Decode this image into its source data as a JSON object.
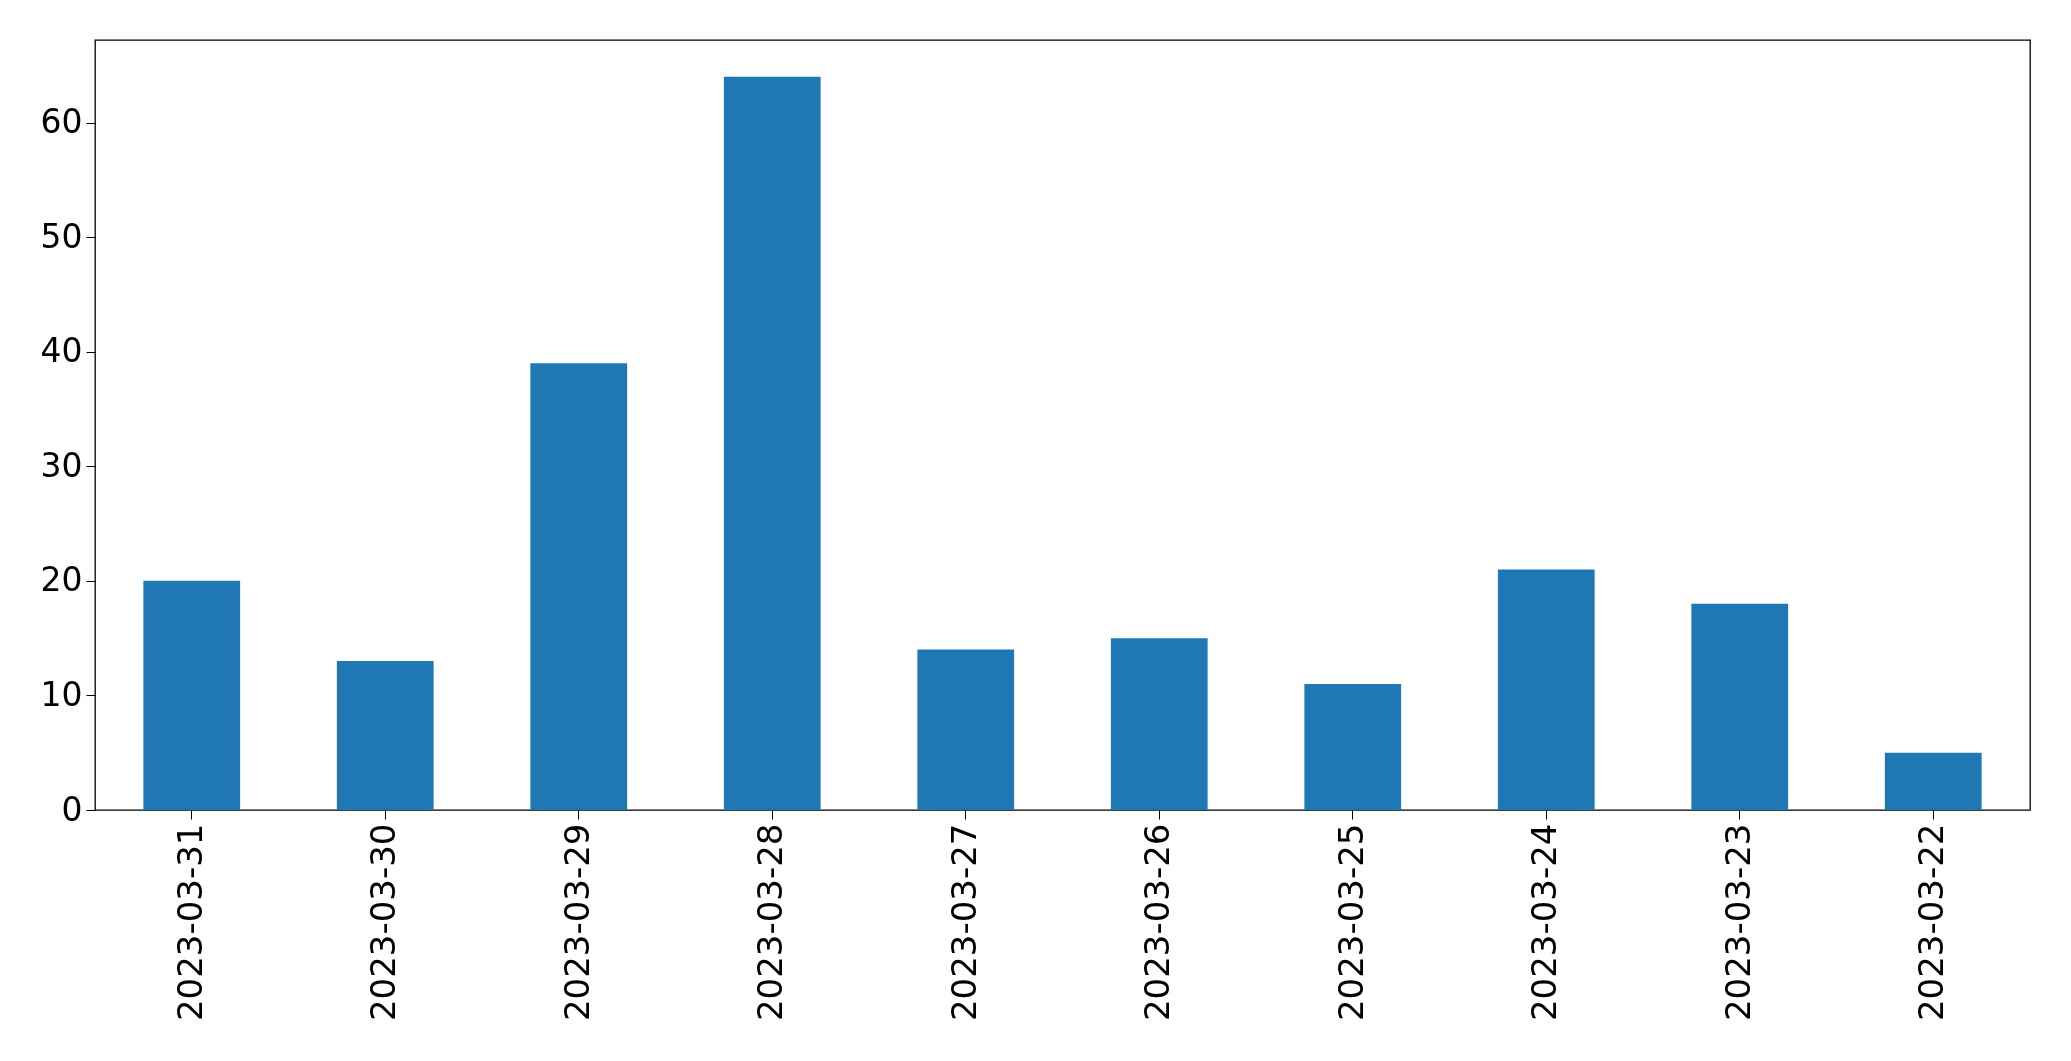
{
  "chart_data": {
    "type": "bar",
    "categories": [
      "2023-03-31",
      "2023-03-30",
      "2023-03-29",
      "2023-03-28",
      "2023-03-27",
      "2023-03-26",
      "2023-03-25",
      "2023-03-24",
      "2023-03-23",
      "2023-03-22"
    ],
    "values": [
      20,
      13,
      39,
      64,
      14,
      15,
      11,
      21,
      18,
      5
    ],
    "color": "#1f77b4",
    "ylim": [
      0,
      67.2
    ],
    "yticks": [
      0,
      10,
      20,
      30,
      40,
      50,
      60
    ],
    "grid": false
  }
}
